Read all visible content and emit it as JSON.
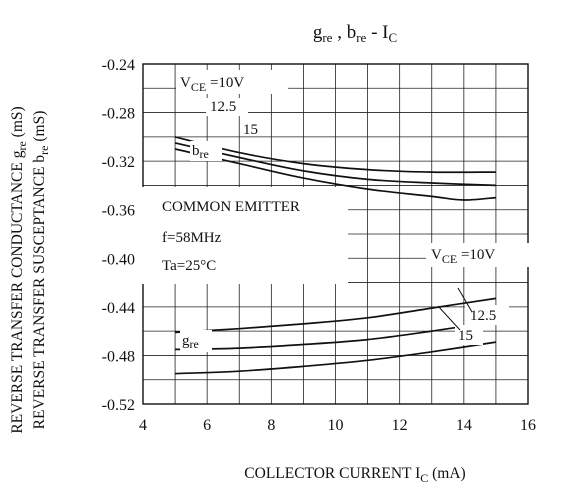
{
  "chart_data": {
    "type": "line",
    "title_main": "g",
    "title_sub1": "re",
    "title_sep": " , b",
    "title_sub2": "re",
    "title_dash": "  -  I",
    "title_sub3": "C",
    "xlabel_main": "COLLECTOR CURRENT I",
    "xlabel_sub": "C",
    "xlabel_unit": "  (mA)",
    "ylabel_line1_main": "REVERSE TRANSFER CONDUCTANCE g",
    "ylabel_line1_sub": "re",
    "ylabel_line1_unit": " (mS)",
    "ylabel_line2_main": "REVERSE TRANSFER SUSCEPTANCE b",
    "ylabel_line2_sub": "re",
    "ylabel_line2_unit": " (mS)",
    "xlim": [
      4,
      16
    ],
    "ylim": [
      -0.24,
      -0.52
    ],
    "x_ticks": [
      "4",
      "6",
      "8",
      "10",
      "12",
      "14",
      "16"
    ],
    "y_ticks": [
      "-0.52",
      "-0.48",
      "-0.44",
      "-0.40",
      "-0.36",
      "-0.32",
      "-0.28",
      "-0.24"
    ],
    "grid": true,
    "conditions": {
      "line1": "COMMON EMITTER",
      "line2": "f=58MHz",
      "line3": "Ta=25°C"
    },
    "series": [
      {
        "group": "b",
        "label_main": "V",
        "label_sub": "CE",
        "label_rest": " =10V",
        "x": [
          5,
          7,
          9,
          11,
          13,
          15
        ],
        "y": [
          -0.495,
          -0.493,
          -0.489,
          -0.484,
          -0.477,
          -0.469
        ]
      },
      {
        "group": "b",
        "label_rest": "12.5",
        "x": [
          5,
          7,
          9,
          11,
          13,
          15
        ],
        "y": [
          -0.475,
          -0.474,
          -0.471,
          -0.467,
          -0.46,
          -0.452
        ]
      },
      {
        "group": "b",
        "label_rest": "15",
        "x": [
          5,
          7,
          9,
          11,
          13,
          15
        ],
        "y": [
          -0.461,
          -0.458,
          -0.454,
          -0.449,
          -0.441,
          -0.433
        ]
      },
      {
        "group": "g",
        "label_main": "V",
        "label_sub": "CE",
        "label_rest": " =10V",
        "x": [
          5,
          7,
          9,
          11,
          13,
          14,
          15
        ],
        "y": [
          -0.31,
          -0.322,
          -0.334,
          -0.343,
          -0.349,
          -0.352,
          -0.35
        ]
      },
      {
        "group": "g",
        "label_rest": "12.5",
        "x": [
          5,
          7,
          9,
          11,
          13,
          15
        ],
        "y": [
          -0.305,
          -0.317,
          -0.328,
          -0.335,
          -0.338,
          -0.34
        ]
      },
      {
        "group": "g",
        "label_rest": "15",
        "x": [
          5,
          7,
          9,
          11,
          13,
          15
        ],
        "y": [
          -0.3,
          -0.313,
          -0.322,
          -0.327,
          -0.329,
          -0.329
        ]
      }
    ],
    "curve_group_labels": {
      "b_main": "b",
      "b_sub": "re",
      "g_main": "g",
      "g_sub": "re"
    }
  }
}
